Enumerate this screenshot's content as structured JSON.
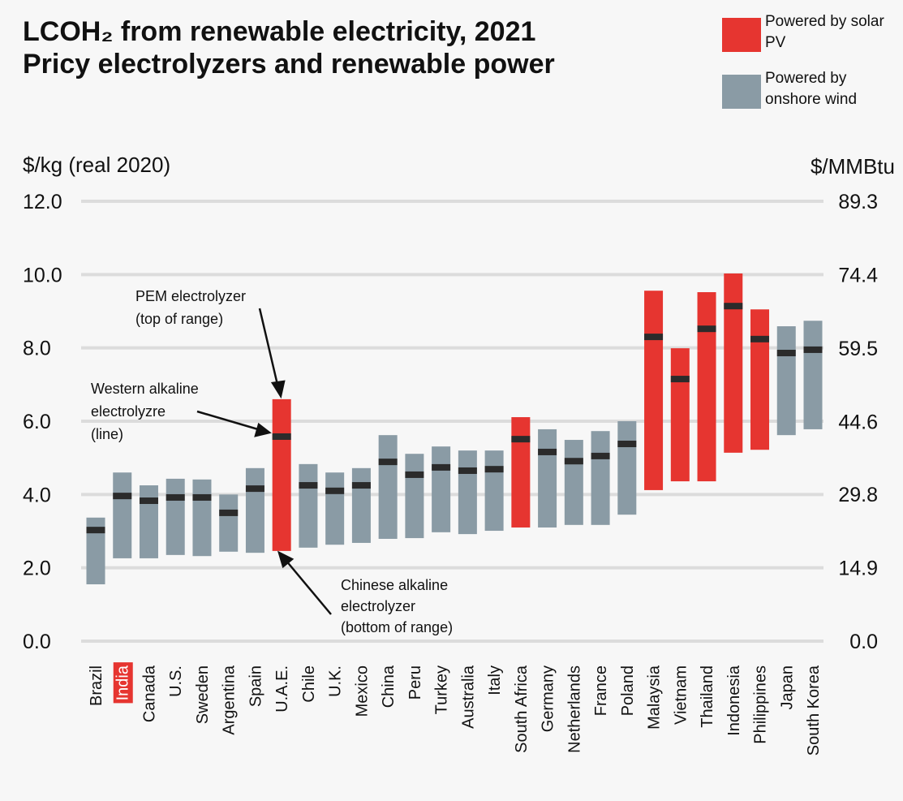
{
  "chart_data": {
    "type": "floating-range",
    "title": "LCOH₂ from renewable electricity, 2021",
    "subtitle": "Pricy electrolyzers and renewable power",
    "y_label": "$/kg (real 2020)",
    "y2_label": "$/MMBtu",
    "categories": [
      "Brazil",
      "India",
      "Canada",
      "U.S.",
      "Sweden",
      "Argentina",
      "Spain",
      "U.A.E.",
      "Chile",
      "U.K.",
      "Mexico",
      "China",
      "Peru",
      "Turkey",
      "Australia",
      "Italy",
      "South Africa",
      "Germany",
      "Netherlands",
      "France",
      "Poland",
      "Malaysia",
      "Vietnam",
      "Thailand",
      "Indonesia",
      "Philippines",
      "Japan",
      "South Korea"
    ],
    "highlight": "India",
    "highlight_color": "#e63530",
    "series": [
      {
        "name": "Powered by solar PV",
        "color": "#e63530",
        "low": [
          null,
          null,
          null,
          null,
          null,
          null,
          null,
          2.46,
          null,
          null,
          null,
          null,
          null,
          null,
          null,
          null,
          3.1,
          null,
          null,
          null,
          null,
          4.12,
          4.36,
          4.36,
          5.14,
          5.22,
          null,
          null
        ],
        "high": [
          null,
          null,
          null,
          null,
          null,
          null,
          null,
          6.6,
          null,
          null,
          null,
          null,
          null,
          null,
          null,
          null,
          6.11,
          null,
          null,
          null,
          null,
          9.56,
          7.99,
          9.52,
          10.03,
          9.05,
          null,
          null
        ],
        "mid": [
          null,
          null,
          null,
          null,
          null,
          null,
          null,
          5.58,
          null,
          null,
          null,
          null,
          null,
          null,
          null,
          null,
          5.51,
          null,
          null,
          null,
          null,
          8.3,
          7.15,
          8.52,
          9.14,
          8.24,
          null,
          null
        ]
      },
      {
        "name": "Powered by onshore wind",
        "color": "#8a9ba5",
        "low": [
          1.55,
          2.26,
          2.26,
          2.35,
          2.32,
          2.44,
          2.41,
          null,
          2.55,
          2.63,
          2.68,
          2.79,
          2.81,
          2.97,
          2.92,
          3.01,
          null,
          3.1,
          3.17,
          3.17,
          3.45,
          null,
          null,
          null,
          null,
          null,
          5.62,
          5.78
        ],
        "high": [
          3.37,
          4.6,
          4.25,
          4.43,
          4.41,
          4.0,
          4.72,
          null,
          4.83,
          4.6,
          4.72,
          5.62,
          5.11,
          5.31,
          5.2,
          5.2,
          null,
          5.78,
          5.49,
          5.73,
          6.0,
          null,
          null,
          null,
          null,
          null,
          8.59,
          8.74
        ],
        "mid": [
          3.03,
          3.96,
          3.83,
          3.92,
          3.92,
          3.5,
          4.16,
          null,
          4.25,
          4.1,
          4.25,
          4.89,
          4.54,
          4.74,
          4.65,
          4.69,
          null,
          5.16,
          4.91,
          5.05,
          5.38,
          null,
          null,
          null,
          null,
          null,
          7.86,
          7.95
        ]
      }
    ],
    "mid_color": "#2b2b2b",
    "ylim": [
      0,
      12
    ],
    "yticks": [
      {
        "value": 0,
        "label": "0.0"
      },
      {
        "value": 2,
        "label": "2.0"
      },
      {
        "value": 4,
        "label": "4.0"
      },
      {
        "value": 6,
        "label": "6.0"
      },
      {
        "value": 8,
        "label": "8.0"
      },
      {
        "value": 10,
        "label": "10.0"
      },
      {
        "value": 12,
        "label": "12.0"
      }
    ],
    "y2lim": [
      0,
      89.3
    ],
    "y2ticks": [
      {
        "value": 0,
        "label": "0.0"
      },
      14.9,
      29.8,
      44.6,
      59.5,
      74.4,
      89.3
    ],
    "grid": true,
    "annotations": [
      {
        "lines": [
          "PEM electrolyzer",
          "(top of range)"
        ]
      },
      {
        "lines": [
          "Western alkaline",
          "electrolyzre",
          "(line)"
        ]
      },
      {
        "lines": [
          "Chinese alkaline",
          "electrolyzer",
          "(bottom of range)"
        ]
      }
    ]
  }
}
